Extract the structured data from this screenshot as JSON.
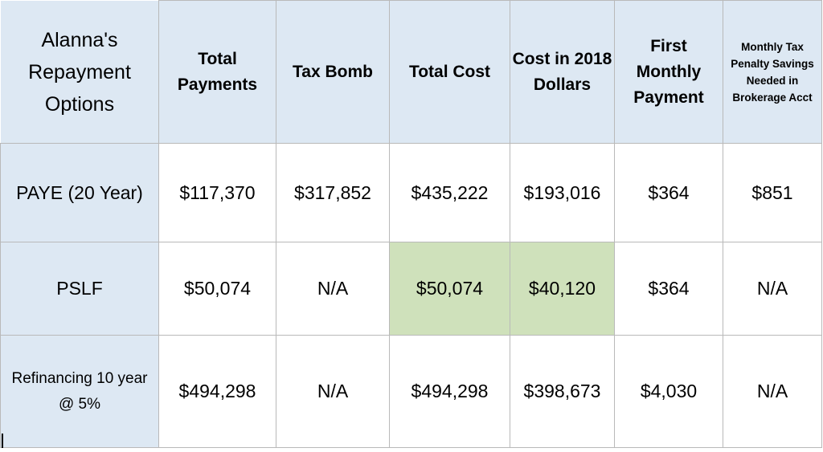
{
  "table": {
    "headers": [
      "Alanna's Repayment Options",
      "Total Payments",
      "Tax Bomb",
      "Total Cost",
      "Cost in 2018 Dollars",
      "First Monthly Payment",
      "Monthly Tax Penalty Savings Needed in Brokerage Acct"
    ],
    "rows": [
      {
        "option": "PAYE (20 Year)",
        "total_payments": "$117,370",
        "tax_bomb": "$317,852",
        "total_cost": "$435,222",
        "cost_2018": "$193,016",
        "first_payment": "$364",
        "monthly_savings": "$851"
      },
      {
        "option": "PSLF",
        "total_payments": "$50,074",
        "tax_bomb": "N/A",
        "total_cost": "$50,074",
        "cost_2018": "$40,120",
        "first_payment": "$364",
        "monthly_savings": "N/A"
      },
      {
        "option": "Refinancing 10 year @ 5%",
        "total_payments": "$494,298",
        "tax_bomb": "N/A",
        "total_cost": "$494,298",
        "cost_2018": "$398,673",
        "first_payment": "$4,030",
        "monthly_savings": "N/A"
      }
    ]
  },
  "colors": {
    "header_fill": "#dde8f3",
    "highlight_fill": "#cfe1bb",
    "border": "#b9b9b9"
  }
}
